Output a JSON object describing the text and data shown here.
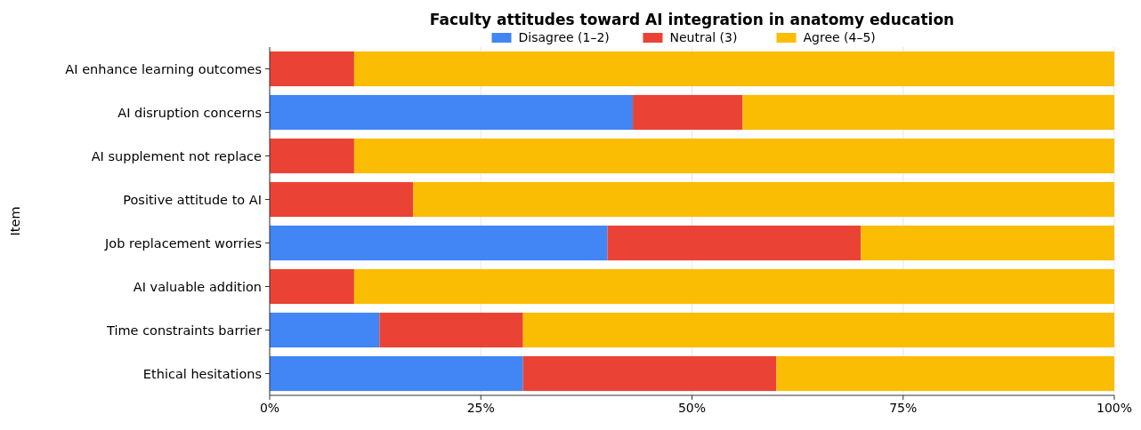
{
  "chart_data": {
    "type": "bar",
    "orientation": "horizontal",
    "stacked": true,
    "title": "Faculty attitudes toward AI integration in anatomy education",
    "ylabel": "Item",
    "categories": [
      "AI enhance learning outcomes",
      "AI disruption concerns",
      "AI supplement not replace",
      "Positive attitude to AI",
      "Job replacement worries",
      "AI valuable addition",
      "Time constraints barrier",
      "Ethical hesitations"
    ],
    "series": [
      {
        "name": "Disagree (1–2)",
        "color": "#4285f4",
        "values": [
          0,
          43,
          0,
          0,
          40,
          0,
          13,
          30
        ]
      },
      {
        "name": "Neutral (3)",
        "color": "#ea4335",
        "values": [
          10,
          13,
          10,
          17,
          30,
          10,
          17,
          30
        ]
      },
      {
        "name": "Agree (4–5)",
        "color": "#fbbc04",
        "values": [
          90,
          44,
          90,
          83,
          30,
          90,
          70,
          40
        ]
      }
    ],
    "xlim": [
      0,
      100
    ],
    "xticks": [
      {
        "value": 0,
        "label": "0%"
      },
      {
        "value": 25,
        "label": "25%"
      },
      {
        "value": 50,
        "label": "50%"
      },
      {
        "value": 75,
        "label": "75%"
      },
      {
        "value": 100,
        "label": "100%"
      }
    ],
    "grid": "x",
    "legend": "top"
  }
}
